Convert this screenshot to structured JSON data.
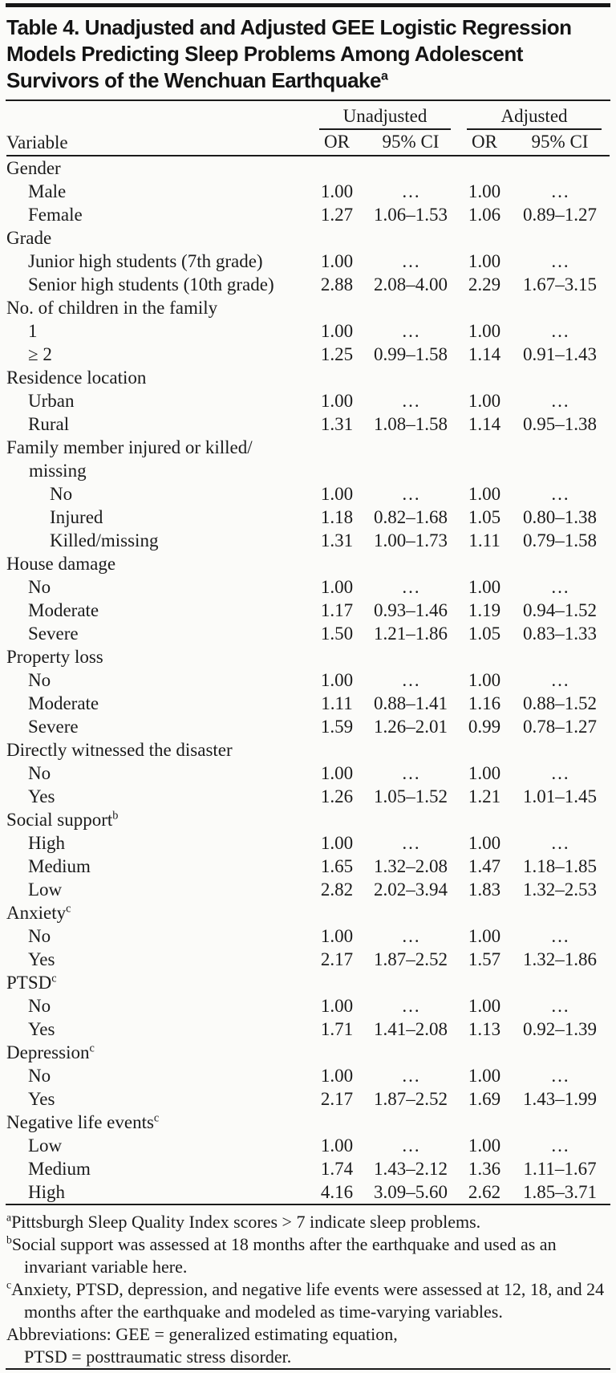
{
  "colors": {
    "text": "#1b1b1b",
    "background": "#fbfbf9",
    "rule": "#1b1b1b",
    "top_bar": "#161616"
  },
  "table": {
    "title_lines": [
      "Table 4. Unadjusted and Adjusted GEE Logistic Regression",
      "Models Predicting Sleep Problems Among Adolescent",
      "Survivors of the Wenchuan Earthquake"
    ],
    "title_sup": "a",
    "col_groups": [
      {
        "label": "Unadjusted"
      },
      {
        "label": "Adjusted"
      }
    ],
    "columns": [
      "Variable",
      "OR",
      "95% CI",
      "OR",
      "95% CI"
    ],
    "rows": [
      {
        "type": "category",
        "indent": 0,
        "label": "Gender"
      },
      {
        "type": "item",
        "indent": 1,
        "label": "Male",
        "cells": [
          "1.00",
          "…",
          "1.00",
          "…"
        ]
      },
      {
        "type": "item",
        "indent": 1,
        "label": "Female",
        "cells": [
          "1.27",
          "1.06–1.53",
          "1.06",
          "0.89–1.27"
        ]
      },
      {
        "type": "category",
        "indent": 0,
        "label": "Grade"
      },
      {
        "type": "item",
        "indent": 1,
        "label": "Junior high students (7th grade)",
        "cells": [
          "1.00",
          "…",
          "1.00",
          "…"
        ]
      },
      {
        "type": "item",
        "indent": 1,
        "label": "Senior high students (10th grade)",
        "cells": [
          "2.88",
          "2.08–4.00",
          "2.29",
          "1.67–3.15"
        ]
      },
      {
        "type": "category",
        "indent": 0,
        "label": "No. of children in the family"
      },
      {
        "type": "item",
        "indent": 1,
        "label": "1",
        "cells": [
          "1.00",
          "…",
          "1.00",
          "…"
        ]
      },
      {
        "type": "item",
        "indent": 1,
        "label": "≥ 2",
        "cells": [
          "1.25",
          "0.99–1.58",
          "1.14",
          "0.91–1.43"
        ]
      },
      {
        "type": "category",
        "indent": 0,
        "label": "Residence location"
      },
      {
        "type": "item",
        "indent": 1,
        "label": "Urban",
        "cells": [
          "1.00",
          "…",
          "1.00",
          "…"
        ]
      },
      {
        "type": "item",
        "indent": 1,
        "label": "Rural",
        "cells": [
          "1.31",
          "1.08–1.58",
          "1.14",
          "0.95–1.38"
        ]
      },
      {
        "type": "category",
        "indent": 0,
        "label": "Family member injured or killed/",
        "label2": "missing"
      },
      {
        "type": "item",
        "indent": 2,
        "label": "No",
        "cells": [
          "1.00",
          "…",
          "1.00",
          "…"
        ]
      },
      {
        "type": "item",
        "indent": 2,
        "label": "Injured",
        "cells": [
          "1.18",
          "0.82–1.68",
          "1.05",
          "0.80–1.38"
        ]
      },
      {
        "type": "item",
        "indent": 2,
        "label": "Killed/missing",
        "cells": [
          "1.31",
          "1.00–1.73",
          "1.11",
          "0.79–1.58"
        ]
      },
      {
        "type": "category",
        "indent": 0,
        "label": "House damage"
      },
      {
        "type": "item",
        "indent": 1,
        "label": "No",
        "cells": [
          "1.00",
          "…",
          "1.00",
          "…"
        ]
      },
      {
        "type": "item",
        "indent": 1,
        "label": "Moderate",
        "cells": [
          "1.17",
          "0.93–1.46",
          "1.19",
          "0.94–1.52"
        ]
      },
      {
        "type": "item",
        "indent": 1,
        "label": "Severe",
        "cells": [
          "1.50",
          "1.21–1.86",
          "1.05",
          "0.83–1.33"
        ]
      },
      {
        "type": "category",
        "indent": 0,
        "label": "Property loss"
      },
      {
        "type": "item",
        "indent": 1,
        "label": "No",
        "cells": [
          "1.00",
          "…",
          "1.00",
          "…"
        ]
      },
      {
        "type": "item",
        "indent": 1,
        "label": "Moderate",
        "cells": [
          "1.11",
          "0.88–1.41",
          "1.16",
          "0.88–1.52"
        ]
      },
      {
        "type": "item",
        "indent": 1,
        "label": "Severe",
        "cells": [
          "1.59",
          "1.26–2.01",
          "0.99",
          "0.78–1.27"
        ]
      },
      {
        "type": "category",
        "indent": 0,
        "label": "Directly witnessed the disaster"
      },
      {
        "type": "item",
        "indent": 1,
        "label": "No",
        "cells": [
          "1.00",
          "…",
          "1.00",
          "…"
        ]
      },
      {
        "type": "item",
        "indent": 1,
        "label": "Yes",
        "cells": [
          "1.26",
          "1.05–1.52",
          "1.21",
          "1.01–1.45"
        ]
      },
      {
        "type": "category",
        "indent": 0,
        "label": "Social support",
        "sup": "b"
      },
      {
        "type": "item",
        "indent": 1,
        "label": "High",
        "cells": [
          "1.00",
          "…",
          "1.00",
          "…"
        ]
      },
      {
        "type": "item",
        "indent": 1,
        "label": "Medium",
        "cells": [
          "1.65",
          "1.32–2.08",
          "1.47",
          "1.18–1.85"
        ]
      },
      {
        "type": "item",
        "indent": 1,
        "label": "Low",
        "cells": [
          "2.82",
          "2.02–3.94",
          "1.83",
          "1.32–2.53"
        ]
      },
      {
        "type": "category",
        "indent": 0,
        "label": "Anxiety",
        "sup": "c"
      },
      {
        "type": "item",
        "indent": 1,
        "label": "No",
        "cells": [
          "1.00",
          "…",
          "1.00",
          "…"
        ]
      },
      {
        "type": "item",
        "indent": 1,
        "label": "Yes",
        "cells": [
          "2.17",
          "1.87–2.52",
          "1.57",
          "1.32–1.86"
        ]
      },
      {
        "type": "category",
        "indent": 0,
        "label": "PTSD",
        "sup": "c"
      },
      {
        "type": "item",
        "indent": 1,
        "label": "No",
        "cells": [
          "1.00",
          "…",
          "1.00",
          "…"
        ]
      },
      {
        "type": "item",
        "indent": 1,
        "label": "Yes",
        "cells": [
          "1.71",
          "1.41–2.08",
          "1.13",
          "0.92–1.39"
        ]
      },
      {
        "type": "category",
        "indent": 0,
        "label": "Depression",
        "sup": "c"
      },
      {
        "type": "item",
        "indent": 1,
        "label": "No",
        "cells": [
          "1.00",
          "…",
          "1.00",
          "…"
        ]
      },
      {
        "type": "item",
        "indent": 1,
        "label": "Yes",
        "cells": [
          "2.17",
          "1.87–2.52",
          "1.69",
          "1.43–1.99"
        ]
      },
      {
        "type": "category",
        "indent": 0,
        "label": "Negative life events",
        "sup": "c"
      },
      {
        "type": "item",
        "indent": 1,
        "label": "Low",
        "cells": [
          "1.00",
          "…",
          "1.00",
          "…"
        ]
      },
      {
        "type": "item",
        "indent": 1,
        "label": "Medium",
        "cells": [
          "1.74",
          "1.43–2.12",
          "1.36",
          "1.11–1.67"
        ]
      },
      {
        "type": "item",
        "indent": 1,
        "label": "High",
        "cells": [
          "4.16",
          "3.09–5.60",
          "2.62",
          "1.85–3.71"
        ]
      }
    ],
    "footnotes": [
      {
        "sup": "a",
        "text": "Pittsburgh Sleep Quality Index scores > 7 indicate sleep problems."
      },
      {
        "sup": "b",
        "text": "Social support was assessed at 18 months after the earthquake and used as an invariant variable here."
      },
      {
        "sup": "c",
        "text": "Anxiety, PTSD, depression, and negative life events were assessed at 12, 18, and 24 months after the earthquake and modeled as time-varying variables."
      },
      {
        "sup": "",
        "text": "Abbreviations: GEE = generalized estimating equation,",
        "text2": "PTSD = posttraumatic stress disorder."
      }
    ]
  }
}
